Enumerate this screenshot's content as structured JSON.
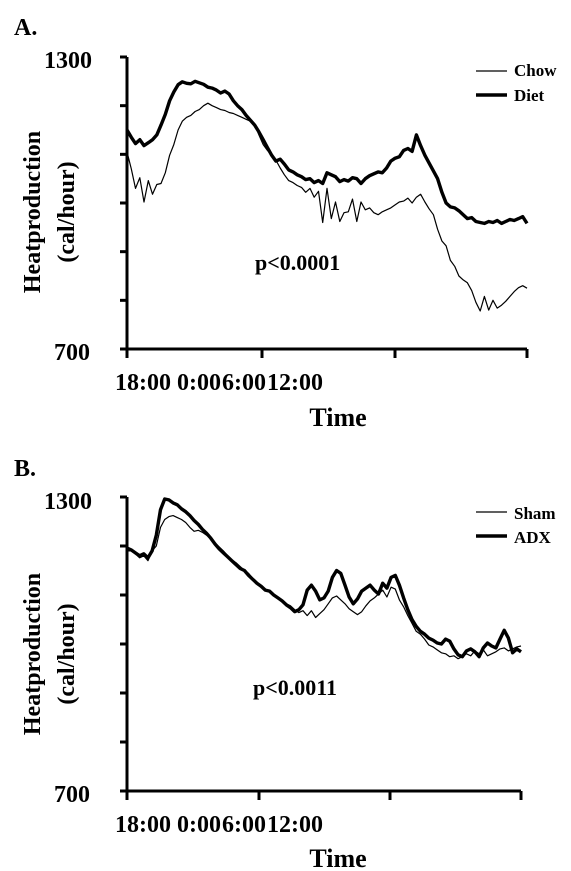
{
  "chart_data": [
    {
      "panel_label": "A.",
      "type": "line",
      "xlabel": "Time",
      "ylabel_line1": "Heatproduction",
      "ylabel_line2": "(cal/hour)",
      "ylim": [
        700,
        1300
      ],
      "ytick_labels": [
        "1300",
        "700"
      ],
      "xtick_labels": [
        "18:00",
        "0:00",
        "6:00",
        "12:00"
      ],
      "annotation": "p<0.0001",
      "legend_position": "top-right",
      "series": [
        {
          "name": "Chow",
          "stroke": "thin",
          "values": [
            1105,
            1070,
            1030,
            1052,
            1002,
            1046,
            1018,
            1038,
            1040,
            1062,
            1098,
            1120,
            1150,
            1168,
            1176,
            1180,
            1188,
            1192,
            1200,
            1205,
            1200,
            1196,
            1192,
            1190,
            1186,
            1184,
            1180,
            1176,
            1172,
            1168,
            1162,
            1140,
            1120,
            1108,
            1098,
            1088,
            1072,
            1058,
            1046,
            1042,
            1036,
            1032,
            1022,
            1030,
            1012,
            1024,
            960,
            1030,
            968,
            1002,
            962,
            980,
            982,
            1008,
            962,
            1002,
            986,
            990,
            980,
            976,
            982,
            986,
            990,
            996,
            1002,
            1004,
            1010,
            1000,
            1012,
            1018,
            1002,
            988,
            976,
            946,
            922,
            912,
            882,
            870,
            850,
            842,
            836,
            820,
            796,
            778,
            808,
            780,
            800,
            784,
            790,
            798,
            808,
            818,
            826,
            830,
            825
          ]
        },
        {
          "name": "Diet",
          "stroke": "thick",
          "values": [
            1150,
            1135,
            1122,
            1130,
            1118,
            1124,
            1130,
            1140,
            1160,
            1182,
            1210,
            1228,
            1243,
            1249,
            1246,
            1245,
            1250,
            1247,
            1244,
            1238,
            1236,
            1232,
            1226,
            1230,
            1224,
            1210,
            1200,
            1192,
            1180,
            1170,
            1160,
            1146,
            1130,
            1114,
            1098,
            1086,
            1090,
            1080,
            1068,
            1064,
            1058,
            1054,
            1048,
            1050,
            1042,
            1046,
            1040,
            1062,
            1058,
            1054,
            1044,
            1048,
            1045,
            1052,
            1050,
            1040,
            1050,
            1056,
            1060,
            1064,
            1062,
            1072,
            1086,
            1092,
            1095,
            1108,
            1112,
            1106,
            1140,
            1118,
            1098,
            1082,
            1066,
            1050,
            1022,
            1000,
            992,
            990,
            984,
            976,
            968,
            970,
            962,
            960,
            958,
            962,
            960,
            964,
            958,
            962,
            966,
            964,
            968,
            972,
            958
          ]
        }
      ]
    },
    {
      "panel_label": "B.",
      "type": "line",
      "xlabel": "Time",
      "ylabel_line1": "Heatproduction",
      "ylabel_line2": "(cal/hour)",
      "ylim": [
        700,
        1300
      ],
      "ytick_labels": [
        "1300",
        "700"
      ],
      "xtick_labels": [
        "18:00",
        "0:00",
        "6:00",
        "12:00"
      ],
      "annotation": "p<0.0011",
      "legend_position": "top-right",
      "series": [
        {
          "name": "Sham",
          "stroke": "thin",
          "values": [
            1190,
            1190,
            1184,
            1176,
            1180,
            1170,
            1190,
            1200,
            1238,
            1254,
            1260,
            1262,
            1258,
            1254,
            1248,
            1238,
            1230,
            1232,
            1228,
            1222,
            1214,
            1206,
            1198,
            1190,
            1180,
            1172,
            1166,
            1158,
            1150,
            1144,
            1134,
            1126,
            1118,
            1110,
            1106,
            1100,
            1094,
            1088,
            1082,
            1078,
            1070,
            1064,
            1068,
            1058,
            1068,
            1054,
            1062,
            1070,
            1082,
            1094,
            1098,
            1090,
            1082,
            1072,
            1066,
            1060,
            1066,
            1078,
            1088,
            1094,
            1102,
            1110,
            1096,
            1116,
            1112,
            1090,
            1076,
            1058,
            1042,
            1026,
            1020,
            1010,
            998,
            994,
            988,
            982,
            980,
            974,
            976,
            970,
            974,
            980,
            976,
            986,
            980,
            988,
            976,
            980,
            984,
            990,
            992,
            986,
            990,
            994,
            996
          ]
        },
        {
          "name": "ADX",
          "stroke": "thick",
          "values": [
            1196,
            1192,
            1186,
            1180,
            1184,
            1176,
            1190,
            1222,
            1274,
            1296,
            1294,
            1288,
            1284,
            1276,
            1270,
            1262,
            1252,
            1244,
            1234,
            1226,
            1216,
            1204,
            1194,
            1186,
            1178,
            1170,
            1162,
            1154,
            1150,
            1140,
            1132,
            1124,
            1118,
            1110,
            1108,
            1100,
            1094,
            1088,
            1080,
            1074,
            1066,
            1070,
            1080,
            1110,
            1120,
            1108,
            1090,
            1094,
            1108,
            1136,
            1150,
            1144,
            1120,
            1096,
            1082,
            1092,
            1108,
            1114,
            1120,
            1110,
            1102,
            1124,
            1114,
            1136,
            1140,
            1120,
            1094,
            1070,
            1050,
            1036,
            1026,
            1020,
            1012,
            1008,
            1002,
            1000,
            1010,
            1006,
            990,
            978,
            974,
            986,
            990,
            984,
            974,
            992,
            1002,
            996,
            992,
            1010,
            1028,
            1012,
            982,
            990,
            984
          ]
        }
      ]
    }
  ]
}
